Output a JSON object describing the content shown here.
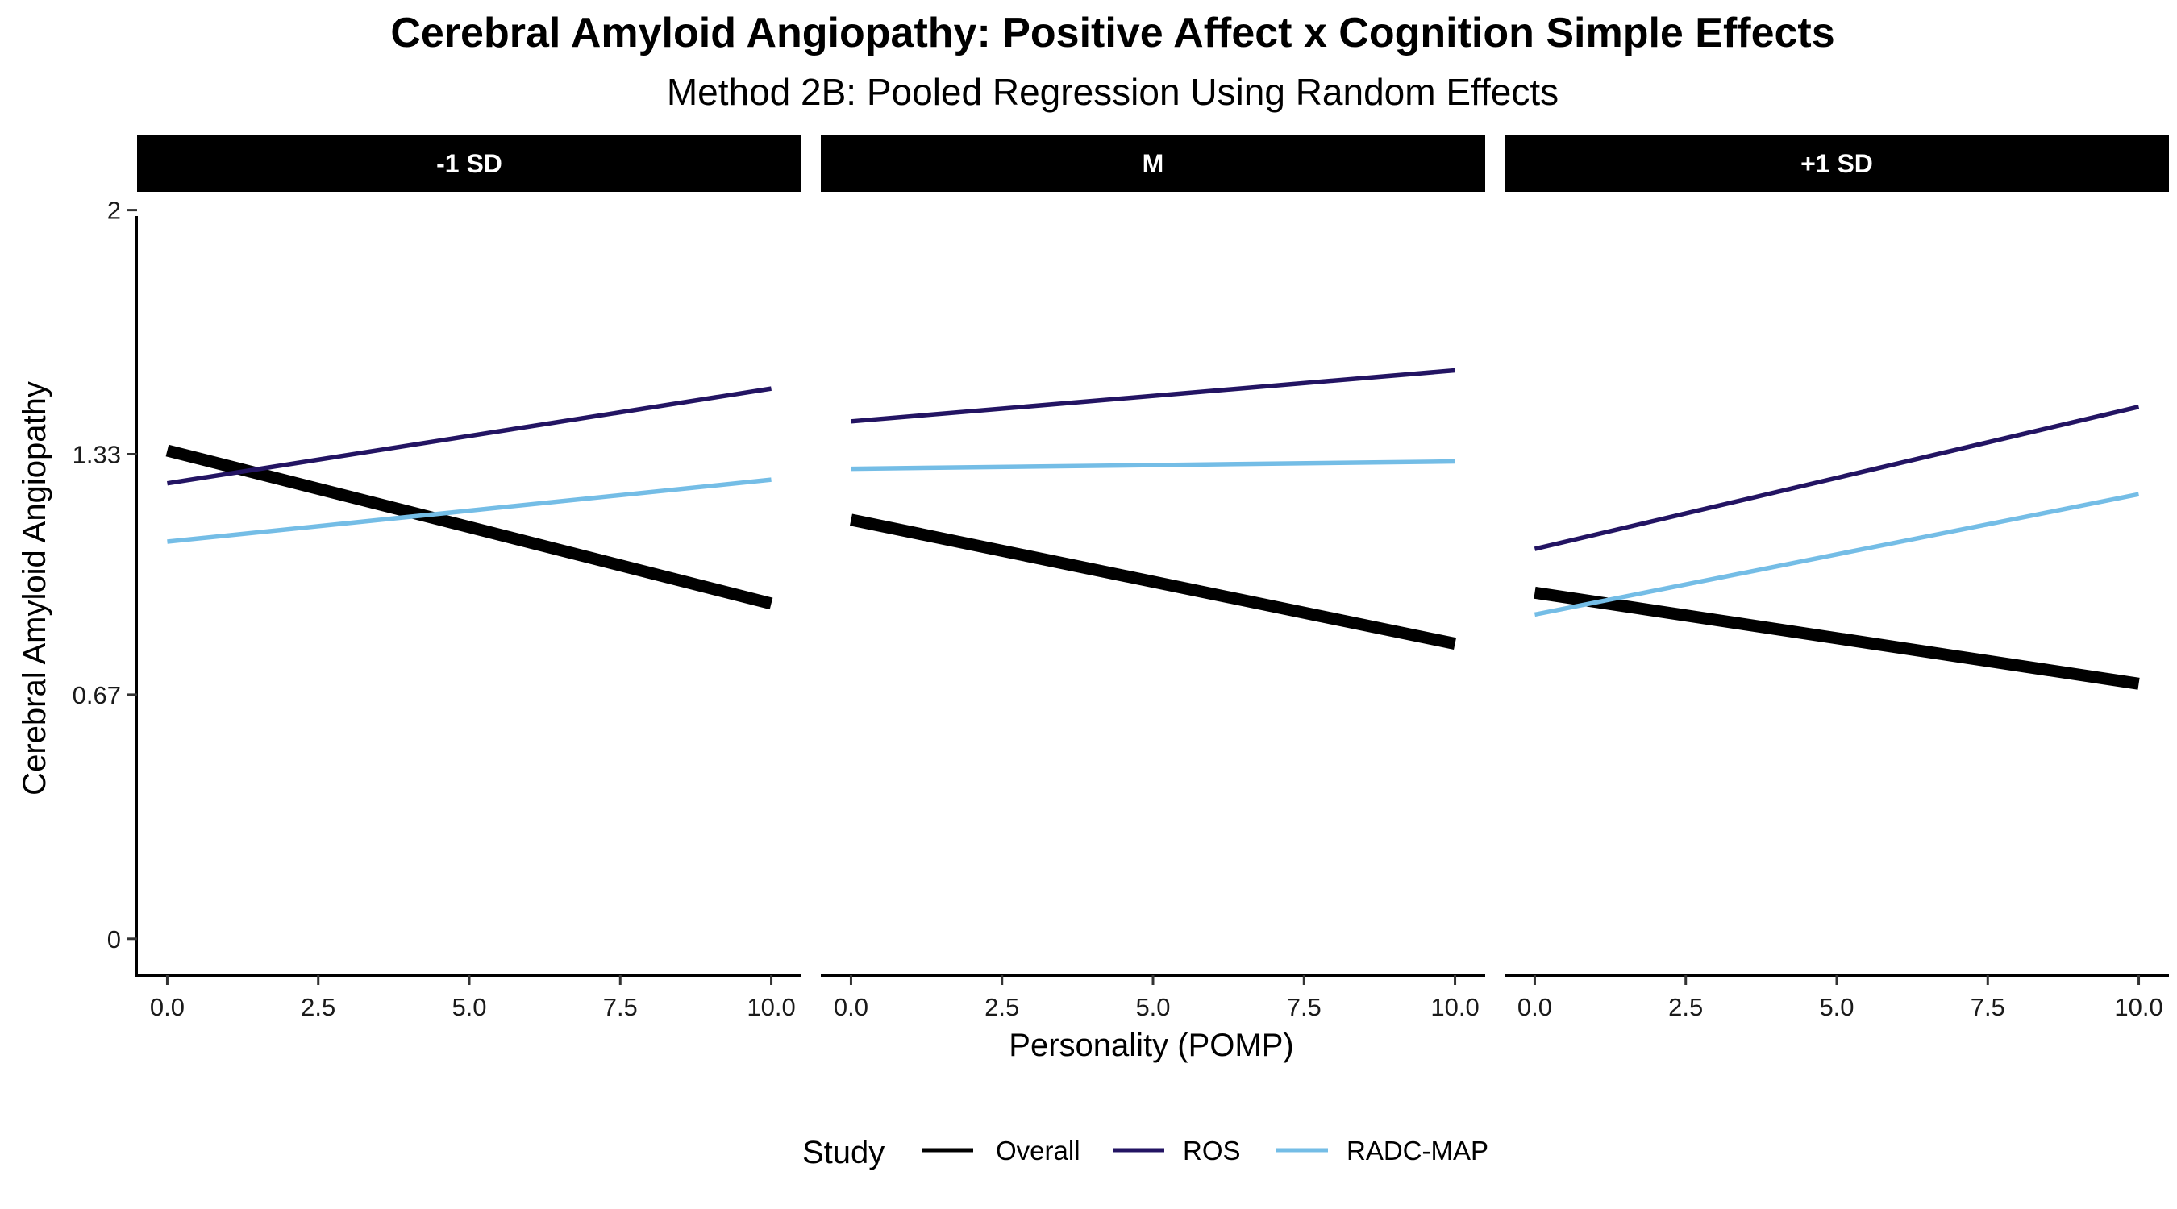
{
  "chart_data": {
    "type": "line",
    "title": "Cerebral Amyloid Angiopathy: Positive Affect x Cognition Simple Effects",
    "subtitle": "Method 2B: Pooled Regression Using Random Effects",
    "xlabel": "Personality (POMP)",
    "ylabel": "Cerebral Amyloid Angiopathy",
    "xlim": [
      -0.5,
      10.5
    ],
    "ylim": [
      -0.1,
      2.05
    ],
    "x_ticks": [
      0,
      2.5,
      5,
      7.5,
      10
    ],
    "x_tick_labels": [
      "0.0",
      "2.5",
      "5.0",
      "7.5",
      "10.0"
    ],
    "y_ticks": [
      0,
      0.67,
      1.33,
      2
    ],
    "y_tick_labels": [
      "0",
      "0.67",
      "1.33",
      "2"
    ],
    "grid": false,
    "legend": {
      "title": "Study",
      "placement": "bottom",
      "entries": [
        {
          "name": "Overall",
          "color": "#000000"
        },
        {
          "name": "ROS",
          "color": "#231463"
        },
        {
          "name": "RADC-MAP",
          "color": "#74BDE6"
        }
      ]
    },
    "panels": [
      {
        "label": "-1 SD",
        "series": [
          {
            "name": "Overall",
            "x": [
              0,
              10
            ],
            "y": [
              1.34,
              0.92
            ],
            "color": "#000000",
            "weight": "thick"
          },
          {
            "name": "ROS",
            "x": [
              0,
              10
            ],
            "y": [
              1.25,
              1.51
            ],
            "color": "#231463",
            "weight": "thin"
          },
          {
            "name": "RADC-MAP",
            "x": [
              0,
              10
            ],
            "y": [
              1.09,
              1.26
            ],
            "color": "#74BDE6",
            "weight": "thin"
          }
        ]
      },
      {
        "label": "M",
        "series": [
          {
            "name": "Overall",
            "x": [
              0,
              10
            ],
            "y": [
              1.15,
              0.81
            ],
            "color": "#000000",
            "weight": "thick"
          },
          {
            "name": "ROS",
            "x": [
              0,
              10
            ],
            "y": [
              1.42,
              1.56
            ],
            "color": "#231463",
            "weight": "thin"
          },
          {
            "name": "RADC-MAP",
            "x": [
              0,
              10
            ],
            "y": [
              1.29,
              1.31
            ],
            "color": "#74BDE6",
            "weight": "thin"
          }
        ]
      },
      {
        "label": "+1 SD",
        "series": [
          {
            "name": "Overall",
            "x": [
              0,
              10
            ],
            "y": [
              0.95,
              0.7
            ],
            "color": "#000000",
            "weight": "thick"
          },
          {
            "name": "ROS",
            "x": [
              0,
              10
            ],
            "y": [
              1.07,
              1.46
            ],
            "color": "#231463",
            "weight": "thin"
          },
          {
            "name": "RADC-MAP",
            "x": [
              0,
              10
            ],
            "y": [
              0.89,
              1.22
            ],
            "color": "#74BDE6",
            "weight": "thin"
          }
        ]
      }
    ]
  }
}
